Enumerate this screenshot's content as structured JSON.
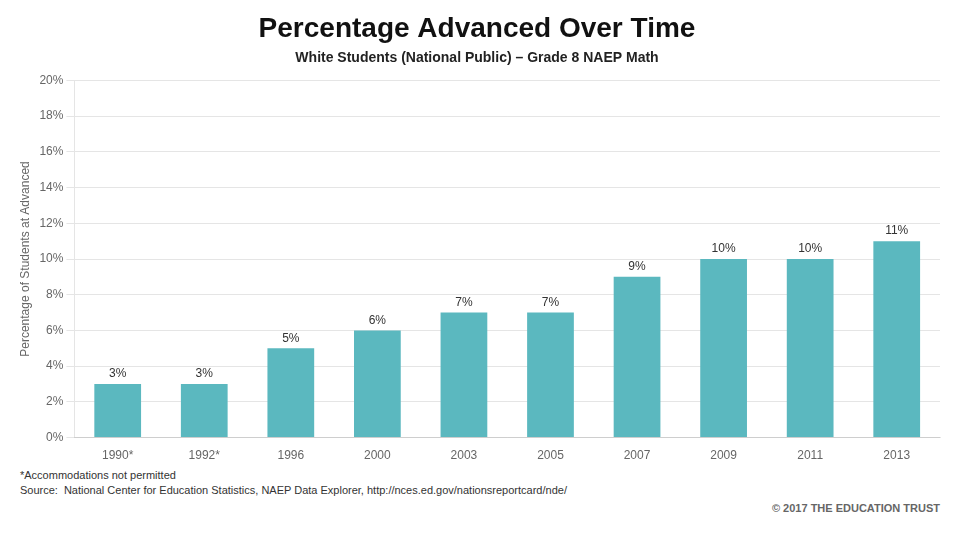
{
  "chart_data": {
    "type": "bar",
    "title": "Percentage Advanced Over Time",
    "subtitle": "White Students (National Public) – Grade 8 NAEP Math",
    "categories": [
      "1990*",
      "1992*",
      "1996",
      "2000",
      "2003",
      "2005",
      "2007",
      "2009",
      "2011",
      "2013"
    ],
    "values": [
      3,
      3,
      5,
      6,
      7,
      7,
      9,
      10,
      10,
      11
    ],
    "value_labels": [
      "3%",
      "3%",
      "5%",
      "6%",
      "7%",
      "7%",
      "9%",
      "10%",
      "10%",
      "11%"
    ],
    "data_labels": true,
    "color": "#5BB8BF",
    "ylabel": "Percentage of Students at Advanced",
    "ylim": [
      0,
      20
    ],
    "yticks": [
      {
        "value": 0,
        "label": "0%"
      },
      {
        "value": 2,
        "label": "2%"
      },
      {
        "value": 4,
        "label": "4%"
      },
      {
        "value": 6,
        "label": "6%"
      },
      {
        "value": 8,
        "label": "8%"
      },
      {
        "value": 10,
        "label": "10%"
      },
      {
        "value": 12,
        "label": "12%"
      },
      {
        "value": 14,
        "label": "14%"
      },
      {
        "value": 16,
        "label": "16%"
      },
      {
        "value": 18,
        "label": "18%"
      },
      {
        "value": 20,
        "label": "20%"
      }
    ],
    "grid": true,
    "annotations": [
      "*Accommodations not permitted",
      "Source:",
      "National Center for Education Statistics, NAEP Data Explorer, http://nces.ed.gov/nationsreportcard/nde/",
      "© 2017 THE EDUCATION TRUST"
    ]
  }
}
